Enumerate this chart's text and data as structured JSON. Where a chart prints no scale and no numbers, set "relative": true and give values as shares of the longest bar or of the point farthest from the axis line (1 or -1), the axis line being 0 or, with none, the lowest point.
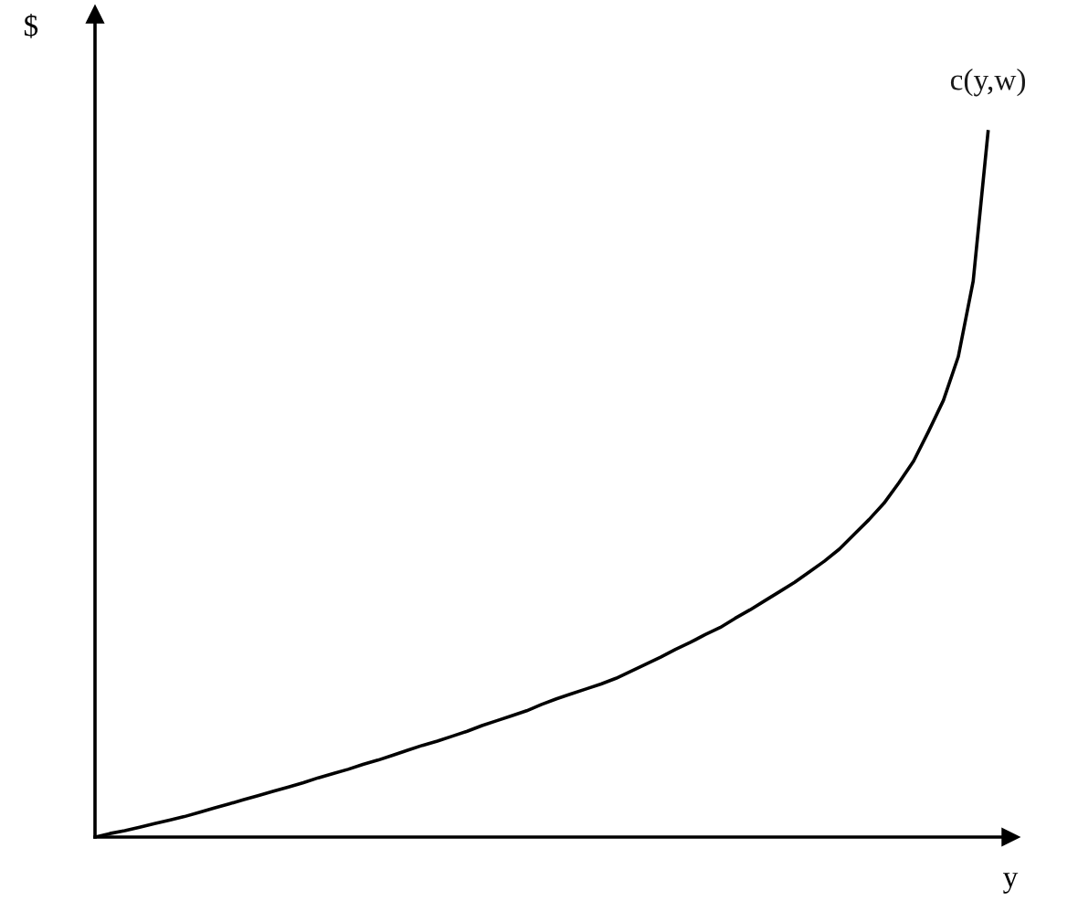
{
  "chart_data": {
    "type": "line",
    "relative": true,
    "xlabel": "y",
    "ylabel": "$",
    "categories": [
      null,
      null,
      null,
      null,
      null,
      null,
      null,
      null,
      null,
      null,
      null,
      null,
      null,
      null,
      null,
      null,
      null,
      null,
      null,
      null,
      null,
      null,
      null,
      null,
      null,
      null,
      null,
      null,
      null,
      null,
      null,
      null,
      null,
      null,
      null,
      null,
      null,
      null,
      null,
      null,
      null,
      null,
      null,
      null,
      null,
      null,
      null,
      null,
      null,
      null,
      null,
      null,
      null,
      null,
      null,
      null,
      null,
      null,
      null,
      null,
      null
    ],
    "series": [
      {
        "name": "c(y,w)",
        "color": "#000000",
        "values": [
          0,
          0.005,
          0.009,
          0.014,
          0.019,
          0.024,
          0.029,
          0.035,
          0.041,
          0.047,
          0.053,
          0.059,
          0.065,
          0.071,
          0.077,
          0.084,
          0.09,
          0.096,
          0.103,
          0.109,
          0.116,
          0.123,
          0.13,
          0.136,
          0.143,
          0.15,
          0.158,
          0.165,
          0.172,
          0.179,
          0.188,
          0.196,
          0.203,
          0.21,
          0.217,
          0.225,
          0.235,
          0.245,
          0.255,
          0.266,
          0.276,
          0.287,
          0.297,
          0.31,
          0.322,
          0.335,
          0.348,
          0.361,
          0.376,
          0.391,
          0.408,
          0.429,
          0.45,
          0.473,
          0.502,
          0.533,
          0.575,
          0.619,
          0.681,
          0.788,
          1
        ]
      }
    ],
    "legend": false,
    "marker": "none",
    "line_style": "solid"
  }
}
